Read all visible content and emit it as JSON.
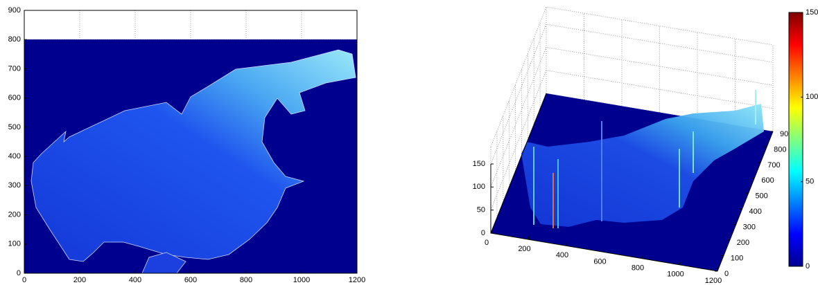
{
  "chart_data": [
    {
      "type": "image",
      "xlim": [
        0,
        1200
      ],
      "xticks": [
        0,
        200,
        400,
        600,
        800,
        1000,
        1200
      ],
      "ylim": [
        0,
        900
      ],
      "yticks": [
        0,
        100,
        200,
        300,
        400,
        500,
        600,
        700,
        800,
        900
      ],
      "grid": true
    },
    {
      "type": "surface3d",
      "xlim": [
        0,
        1200
      ],
      "xticks": [
        0,
        200,
        400,
        600,
        800,
        1000,
        1200
      ],
      "ylim": [
        0,
        900
      ],
      "yticks": [
        0,
        100,
        200,
        300,
        400,
        500,
        600,
        700,
        800,
        900
      ],
      "zlim": [
        0,
        150
      ],
      "zticks": [
        0,
        50,
        100,
        150
      ],
      "grid": true,
      "colorbar": {
        "clim": [
          0,
          150
        ],
        "ticks": [
          0,
          50,
          100,
          150
        ]
      }
    }
  ]
}
